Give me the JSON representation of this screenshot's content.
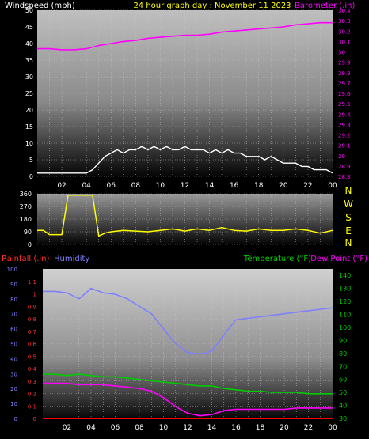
{
  "header": {
    "left_label": "Windspeed (mph)",
    "center_label": "24 hour graph day : November 11 2023",
    "right_label": "Barometer (.in)"
  },
  "colors": {
    "background": "#000000",
    "wind": "#ffffff",
    "gust_green": "#00e000",
    "barometer": "#ff00ff",
    "direction": "#ffff00",
    "humidity": "#8080ff",
    "temperature": "#00cc00",
    "dewpoint": "#ff00ff",
    "rainfall": "#ff0000",
    "grid": "#c8c8c8"
  },
  "x_axis_labels": [
    "02",
    "04",
    "06",
    "08",
    "10",
    "12",
    "14",
    "16",
    "18",
    "20",
    "22",
    "00"
  ],
  "compass_labels": [
    "N",
    "W",
    "S",
    "E",
    "N"
  ],
  "panel3_header": {
    "rainfall_label": "Rainfall (.in)",
    "humidity_label": "Humidity",
    "temperature_label": "Temperature (°F)",
    "dewpoint_label": "Dew Point (°F)"
  },
  "chart_data": [
    {
      "type": "line",
      "series": [
        {
          "name": "Windspeed (mph)",
          "axis": "left",
          "x": [
            0,
            1,
            2,
            3,
            4,
            4.5,
            5,
            5.5,
            6,
            6.5,
            7,
            7.5,
            8,
            8.5,
            9,
            9.5,
            10,
            10.5,
            11,
            11.5,
            12,
            12.5,
            13,
            13.5,
            14,
            14.5,
            15,
            15.5,
            16,
            16.5,
            17,
            17.5,
            18,
            18.5,
            19,
            19.5,
            20,
            20.5,
            21,
            21.5,
            22,
            22.5,
            23,
            23.5,
            24
          ],
          "values": [
            1,
            1,
            1,
            1,
            1,
            2,
            4,
            6,
            7,
            8,
            7,
            8,
            8,
            9,
            8,
            9,
            8,
            9,
            8,
            8,
            9,
            8,
            8,
            8,
            7,
            8,
            7,
            8,
            7,
            7,
            6,
            6,
            6,
            5,
            6,
            5,
            4,
            4,
            4,
            3,
            3,
            2,
            2,
            2,
            1
          ]
        },
        {
          "name": "Barometer (.in)",
          "axis": "right",
          "x": [
            0,
            1,
            2,
            3,
            4,
            5,
            6,
            7,
            8,
            9,
            10,
            11,
            12,
            13,
            14,
            15,
            16,
            17,
            18,
            19,
            20,
            21,
            22,
            23,
            24
          ],
          "values": [
            30.03,
            30.03,
            30.02,
            30.02,
            30.03,
            30.06,
            30.08,
            30.1,
            30.11,
            30.13,
            30.14,
            30.15,
            30.16,
            30.16,
            30.17,
            30.19,
            30.2,
            30.21,
            30.22,
            30.23,
            30.24,
            30.26,
            30.27,
            30.28,
            30.28
          ]
        }
      ],
      "ylim_left": [
        0,
        50
      ],
      "yticks_left": [
        0,
        5,
        10,
        15,
        20,
        25,
        30,
        35,
        40,
        45,
        50
      ],
      "ylim_right": [
        28.8,
        30.4
      ],
      "yticks_right": [
        28.8,
        28.9,
        29,
        29.1,
        29.2,
        29.3,
        29.4,
        29.5,
        29.6,
        29.7,
        29.8,
        29.9,
        30,
        30.1,
        30.2,
        30.3,
        30.4
      ],
      "xlim": [
        0,
        24
      ],
      "grid": true
    },
    {
      "type": "line",
      "series": [
        {
          "name": "Wind Direction",
          "x": [
            0,
            0.5,
            1,
            1.5,
            2,
            2.5,
            3,
            3.5,
            4,
            4.5,
            5,
            5.5,
            6,
            7,
            8,
            9,
            10,
            11,
            12,
            13,
            14,
            15,
            16,
            17,
            18,
            19,
            20,
            21,
            22,
            23,
            24
          ],
          "values": [
            100,
            100,
            70,
            70,
            70,
            350,
            350,
            350,
            350,
            350,
            60,
            80,
            90,
            100,
            95,
            90,
            100,
            110,
            95,
            110,
            100,
            120,
            100,
            95,
            110,
            100,
            100,
            110,
            100,
            80,
            100
          ]
        }
      ],
      "ylim": [
        0,
        360
      ],
      "yticks": [
        0,
        90,
        180,
        270,
        360
      ],
      "xlim": [
        0,
        24
      ],
      "grid": true
    },
    {
      "type": "line",
      "series": [
        {
          "name": "Humidity",
          "axis": "left",
          "x": [
            0,
            1,
            2,
            3,
            4,
            5,
            6,
            7,
            8,
            9,
            10,
            11,
            12,
            13,
            14,
            15,
            16,
            17,
            18,
            19,
            20,
            21,
            22,
            23,
            24
          ],
          "values": [
            85,
            85,
            84,
            80,
            87,
            84,
            83,
            80,
            75,
            70,
            60,
            50,
            44,
            43,
            45,
            56,
            66,
            67,
            68,
            69,
            70,
            71,
            72,
            73,
            74
          ]
        },
        {
          "name": "Temperature (°F)",
          "axis": "right",
          "x": [
            0,
            1,
            2,
            3,
            4,
            5,
            6,
            7,
            8,
            9,
            10,
            11,
            12,
            13,
            14,
            15,
            16,
            17,
            18,
            19,
            20,
            21,
            22,
            23,
            24
          ],
          "values": [
            64,
            64,
            63,
            64,
            63,
            62,
            62,
            61,
            60,
            59,
            58,
            57,
            56,
            55,
            55,
            53,
            52,
            51,
            51,
            50,
            50,
            50,
            49,
            49,
            49
          ]
        },
        {
          "name": "Dew Point (°F)",
          "axis": "right",
          "x": [
            0,
            1,
            2,
            3,
            4,
            5,
            6,
            7,
            8,
            9,
            10,
            11,
            12,
            13,
            14,
            15,
            16,
            17,
            18,
            19,
            20,
            21,
            22,
            23,
            24
          ],
          "values": [
            57,
            57,
            57,
            56,
            56,
            56,
            55,
            54,
            53,
            51,
            46,
            39,
            34,
            32,
            33,
            36,
            37,
            37,
            37,
            37,
            37,
            38,
            38,
            38,
            38
          ]
        },
        {
          "name": "Rainfall (.in)",
          "axis": "left2",
          "x": [
            0,
            24
          ],
          "values": [
            0,
            0
          ]
        }
      ],
      "ylim_humidity": [
        0,
        100
      ],
      "yticks_humidity": [
        0,
        10,
        20,
        30,
        40,
        50,
        60,
        70,
        80,
        90,
        100
      ],
      "ylim_rain": [
        0,
        1.2
      ],
      "yticks_rain": [
        0,
        0.1,
        0.2,
        0.3,
        0.4,
        0.5,
        0.6,
        0.7,
        0.8,
        0.9,
        1,
        1.1
      ],
      "ylim_temp": [
        30,
        145
      ],
      "yticks_temp": [
        30,
        40,
        50,
        60,
        70,
        80,
        90,
        100,
        110,
        120,
        130,
        140
      ],
      "xlim": [
        0,
        24
      ],
      "grid": true
    }
  ]
}
